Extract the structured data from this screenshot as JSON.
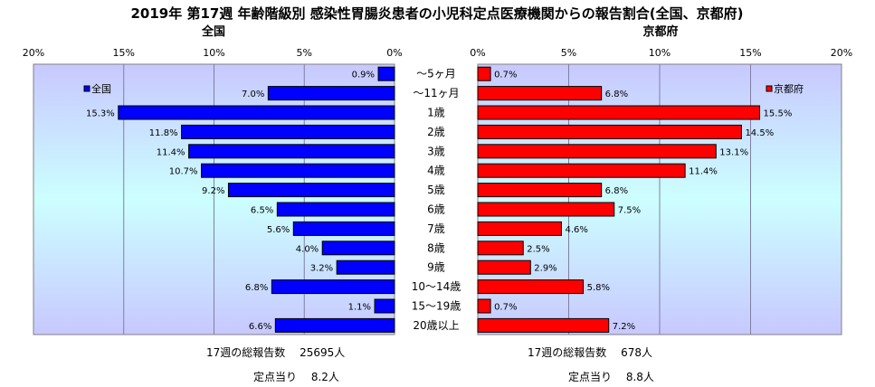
{
  "chart_data": {
    "type": "bar",
    "title": "2019年 第17週 年齢階級別 感染性胃腸炎患者の小児科定点医療機関からの報告割合(全国、京都府)",
    "categories": [
      "～5ヶ月",
      "～11ヶ月",
      "1歳",
      "2歳",
      "3歳",
      "4歳",
      "5歳",
      "6歳",
      "7歳",
      "8歳",
      "9歳",
      "10～14歳",
      "15～19歳",
      "20歳以上"
    ],
    "x_ticks": [
      "20%",
      "15%",
      "10%",
      "5%",
      "0%"
    ],
    "x_ticks_right": [
      "0%",
      "5%",
      "10%",
      "15%",
      "20%"
    ],
    "xlim": [
      0,
      20
    ],
    "grid": true,
    "series": [
      {
        "name": "全国",
        "panel": "left",
        "color": "#0000ff",
        "values": [
          0.9,
          7.0,
          15.3,
          11.8,
          11.4,
          10.7,
          9.2,
          6.5,
          5.6,
          4.0,
          3.2,
          6.8,
          1.1,
          6.6
        ],
        "labels": [
          "0.9%",
          "7.0%",
          "15.3%",
          "11.8%",
          "11.4%",
          "10.7%",
          "9.2%",
          "6.5%",
          "5.6%",
          "4.0%",
          "3.2%",
          "6.8%",
          "1.1%",
          "6.6%"
        ],
        "legend": "top-left"
      },
      {
        "name": "京都府",
        "panel": "right",
        "color": "#ff0000",
        "values": [
          0.7,
          6.8,
          15.5,
          14.5,
          13.1,
          11.4,
          6.8,
          7.5,
          4.6,
          2.5,
          2.9,
          5.8,
          0.7,
          7.2
        ],
        "labels": [
          "0.7%",
          "6.8%",
          "15.5%",
          "14.5%",
          "13.1%",
          "11.4%",
          "6.8%",
          "7.5%",
          "4.6%",
          "2.5%",
          "2.9%",
          "5.8%",
          "0.7%",
          "7.2%"
        ],
        "legend": "top-right"
      }
    ]
  },
  "footer": {
    "national_total": "17週の総報告数　 25695人",
    "national_per_site": "定点当り　 8.2人",
    "kyoto_total": "17週の総報告数　 678人",
    "kyoto_per_site": "定点当り　 8.8人"
  }
}
